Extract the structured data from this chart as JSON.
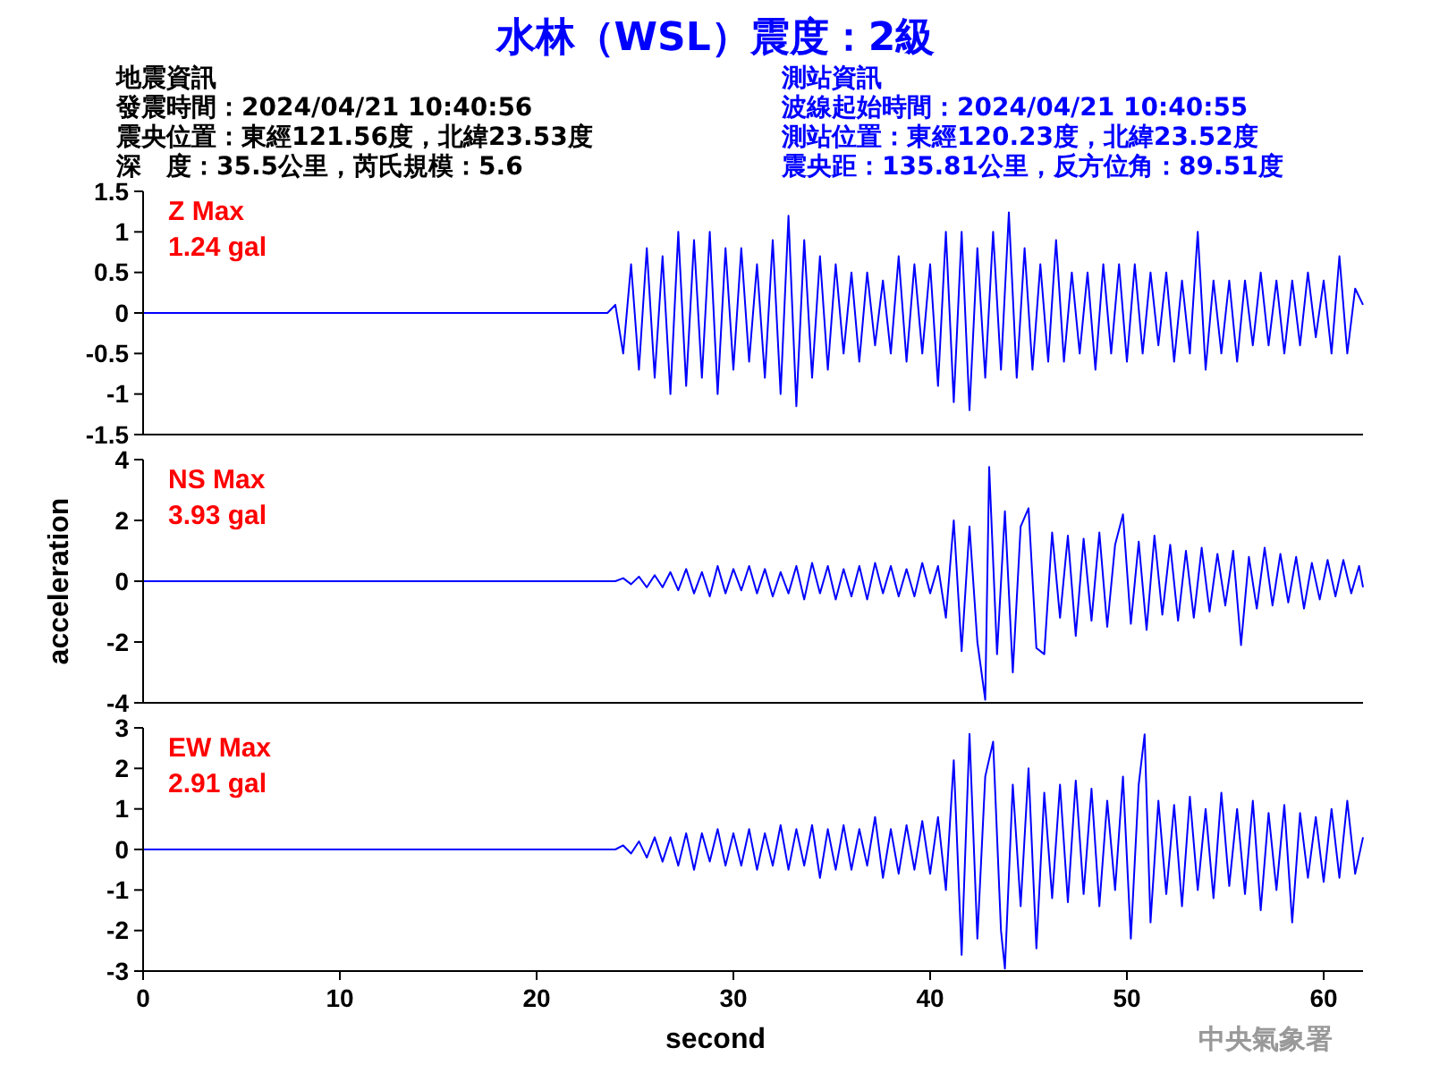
{
  "chart_data": [
    {
      "type": "line",
      "title": "水林（WSL）震度：2級",
      "annotations": [
        "地震資訊",
        "發震時間：2024/04/21 10:40:56",
        "震央位置：東經121.56度，北緯23.53度",
        "深　度：35.5公里，芮氏規模：5.6",
        "測站資訊",
        "波線起始時間：2024/04/21 10:40:55",
        "測站位置：東經120.23度，北緯23.52度",
        "震央距：135.81公里，反方位角：89.51度",
        "Z Max",
        "1.24 gal"
      ],
      "xlim": [
        0,
        62
      ],
      "ylim": [
        -1.5,
        1.5
      ],
      "yticks": [
        -1.5,
        -1,
        -0.5,
        0,
        0.5,
        1,
        1.5
      ],
      "tick_labels": "y",
      "series": [
        {
          "color": "#0000ff",
          "x": [
            0,
            23.6,
            24.0,
            24.4,
            24.8,
            25.2,
            25.6,
            26.0,
            26.4,
            26.8,
            27.2,
            27.6,
            28.0,
            28.4,
            28.8,
            29.2,
            29.6,
            30.0,
            30.4,
            30.8,
            31.2,
            31.6,
            32.0,
            32.4,
            32.8,
            33.2,
            33.6,
            34.0,
            34.4,
            34.8,
            35.2,
            35.6,
            36.0,
            36.4,
            36.8,
            37.2,
            37.6,
            38.0,
            38.4,
            38.8,
            39.2,
            39.6,
            40.0,
            40.4,
            40.8,
            41.2,
            41.6,
            42.0,
            42.4,
            42.8,
            43.2,
            43.6,
            44.0,
            44.4,
            44.8,
            45.2,
            45.6,
            46.0,
            46.4,
            46.8,
            47.2,
            47.6,
            48.0,
            48.4,
            48.8,
            49.2,
            49.6,
            50.0,
            50.4,
            50.8,
            51.2,
            51.6,
            52.0,
            52.4,
            52.8,
            53.2,
            53.6,
            54.0,
            54.4,
            54.8,
            55.2,
            55.6,
            56.0,
            56.4,
            56.8,
            57.2,
            57.6,
            58.0,
            58.4,
            58.8,
            59.2,
            59.6,
            60.0,
            60.4,
            60.8,
            61.2,
            61.6,
            62.0
          ],
          "values": [
            0,
            0,
            0.1,
            -0.5,
            0.6,
            -0.7,
            0.8,
            -0.8,
            0.7,
            -1.0,
            1.0,
            -0.9,
            0.9,
            -0.8,
            1.0,
            -1.0,
            0.8,
            -0.7,
            0.8,
            -0.6,
            0.6,
            -0.8,
            0.9,
            -1.0,
            1.2,
            -1.15,
            0.9,
            -0.8,
            0.7,
            -0.7,
            0.6,
            -0.5,
            0.5,
            -0.6,
            0.5,
            -0.4,
            0.4,
            -0.5,
            0.7,
            -0.6,
            0.6,
            -0.5,
            0.6,
            -0.9,
            1.0,
            -1.1,
            1.0,
            -1.2,
            0.8,
            -0.8,
            1.0,
            -0.7,
            1.24,
            -0.8,
            0.8,
            -0.7,
            0.6,
            -0.6,
            0.9,
            -0.6,
            0.5,
            -0.5,
            0.5,
            -0.7,
            0.6,
            -0.5,
            0.6,
            -0.6,
            0.6,
            -0.5,
            0.5,
            -0.4,
            0.5,
            -0.6,
            0.4,
            -0.5,
            1.0,
            -0.7,
            0.4,
            -0.5,
            0.4,
            -0.6,
            0.4,
            -0.4,
            0.5,
            -0.4,
            0.4,
            -0.5,
            0.4,
            -0.4,
            0.5,
            -0.3,
            0.4,
            -0.5,
            0.7,
            -0.5,
            0.3,
            0.1
          ]
        }
      ]
    },
    {
      "type": "line",
      "ylabel": "acceleration",
      "annotations": [
        "NS Max",
        "3.93 gal"
      ],
      "xlim": [
        0,
        62
      ],
      "ylim": [
        -4,
        4
      ],
      "yticks": [
        -4,
        -2,
        0,
        2,
        4
      ],
      "tick_labels": "y",
      "series": [
        {
          "color": "#0000ff",
          "x": [
            0,
            23.6,
            24.0,
            24.4,
            24.8,
            25.2,
            25.6,
            26.0,
            26.4,
            26.8,
            27.2,
            27.6,
            28.0,
            28.4,
            28.8,
            29.2,
            29.6,
            30.0,
            30.4,
            30.8,
            31.2,
            31.6,
            32.0,
            32.4,
            32.8,
            33.2,
            33.6,
            34.0,
            34.4,
            34.8,
            35.2,
            35.6,
            36.0,
            36.4,
            36.8,
            37.2,
            37.6,
            38.0,
            38.4,
            38.8,
            39.2,
            39.6,
            40.0,
            40.4,
            40.8,
            41.2,
            41.6,
            42.0,
            42.4,
            42.8,
            43.0,
            43.4,
            43.8,
            44.2,
            44.6,
            45.0,
            45.4,
            45.8,
            46.2,
            46.6,
            47.0,
            47.4,
            47.8,
            48.2,
            48.6,
            49.0,
            49.4,
            49.8,
            50.2,
            50.6,
            51.0,
            51.4,
            51.8,
            52.2,
            52.6,
            53.0,
            53.4,
            53.8,
            54.2,
            54.6,
            55.0,
            55.4,
            55.8,
            56.2,
            56.6,
            57.0,
            57.4,
            57.8,
            58.2,
            58.6,
            59.0,
            59.4,
            59.8,
            60.2,
            60.6,
            61.0,
            61.4,
            61.8,
            62.0
          ],
          "values": [
            0,
            0,
            0,
            0.1,
            -0.1,
            0.15,
            -0.2,
            0.2,
            -0.2,
            0.3,
            -0.3,
            0.4,
            -0.4,
            0.3,
            -0.5,
            0.5,
            -0.4,
            0.4,
            -0.3,
            0.5,
            -0.4,
            0.4,
            -0.5,
            0.3,
            -0.4,
            0.5,
            -0.6,
            0.6,
            -0.4,
            0.5,
            -0.6,
            0.4,
            -0.5,
            0.5,
            -0.6,
            0.6,
            -0.4,
            0.5,
            -0.5,
            0.4,
            -0.5,
            0.6,
            -0.4,
            0.5,
            -1.2,
            2.0,
            -2.3,
            1.8,
            -2.0,
            -3.9,
            3.76,
            -2.4,
            2.3,
            -3.0,
            1.8,
            2.4,
            -2.2,
            -2.4,
            1.6,
            -1.2,
            1.5,
            -1.8,
            1.4,
            -1.3,
            1.6,
            -1.5,
            1.2,
            2.2,
            -1.4,
            1.3,
            -1.6,
            1.5,
            -1.1,
            1.2,
            -1.3,
            1.0,
            -1.2,
            1.1,
            -1.0,
            0.9,
            -0.8,
            1.0,
            -2.1,
            0.8,
            -0.9,
            1.1,
            -0.8,
            0.9,
            -0.7,
            0.8,
            -0.9,
            0.6,
            -0.6,
            0.7,
            -0.5,
            0.7,
            -0.4,
            0.5,
            -0.2
          ]
        }
      ]
    },
    {
      "type": "line",
      "xlabel": "second",
      "annotations": [
        "EW Max",
        "2.91 gal",
        "中央氣象署"
      ],
      "xlim": [
        0,
        62
      ],
      "xticks": [
        0,
        10,
        20,
        30,
        40,
        50,
        60
      ],
      "ylim": [
        -3,
        3
      ],
      "yticks": [
        -3,
        -2,
        -1,
        0,
        1,
        2,
        3
      ],
      "series": [
        {
          "color": "#0000ff",
          "x": [
            0,
            23.6,
            24.0,
            24.4,
            24.8,
            25.2,
            25.6,
            26.0,
            26.4,
            26.8,
            27.2,
            27.6,
            28.0,
            28.4,
            28.8,
            29.2,
            29.6,
            30.0,
            30.4,
            30.8,
            31.2,
            31.6,
            32.0,
            32.4,
            32.8,
            33.2,
            33.6,
            34.0,
            34.4,
            34.8,
            35.2,
            35.6,
            36.0,
            36.4,
            36.8,
            37.2,
            37.6,
            38.0,
            38.4,
            38.8,
            39.2,
            39.6,
            40.0,
            40.4,
            40.8,
            41.2,
            41.6,
            42.0,
            42.4,
            42.8,
            43.2,
            43.6,
            43.8,
            44.2,
            44.6,
            45.0,
            45.4,
            45.8,
            46.2,
            46.6,
            47.0,
            47.4,
            47.8,
            48.2,
            48.6,
            49.0,
            49.4,
            49.8,
            50.2,
            50.6,
            50.9,
            51.2,
            51.6,
            52.0,
            52.4,
            52.8,
            53.2,
            53.6,
            54.0,
            54.4,
            54.8,
            55.2,
            55.6,
            56.0,
            56.4,
            56.8,
            57.2,
            57.6,
            58.0,
            58.4,
            58.8,
            59.2,
            59.6,
            60.0,
            60.4,
            60.8,
            61.2,
            61.6,
            62.0
          ],
          "values": [
            0,
            0,
            0,
            0.1,
            -0.1,
            0.2,
            -0.2,
            0.3,
            -0.3,
            0.3,
            -0.4,
            0.4,
            -0.5,
            0.4,
            -0.3,
            0.5,
            -0.4,
            0.4,
            -0.4,
            0.5,
            -0.5,
            0.4,
            -0.4,
            0.6,
            -0.5,
            0.5,
            -0.4,
            0.6,
            -0.7,
            0.5,
            -0.5,
            0.6,
            -0.5,
            0.5,
            -0.4,
            0.8,
            -0.7,
            0.5,
            -0.6,
            0.6,
            -0.5,
            0.7,
            -0.6,
            0.8,
            -1.0,
            2.2,
            -2.6,
            2.85,
            -2.2,
            1.8,
            2.66,
            -2.0,
            -2.94,
            1.6,
            -1.4,
            2.0,
            -2.44,
            1.4,
            -1.2,
            1.6,
            -1.3,
            1.7,
            -1.1,
            1.5,
            -1.4,
            1.2,
            -1.0,
            1.8,
            -2.2,
            1.6,
            2.84,
            -1.8,
            1.2,
            -1.1,
            1.1,
            -1.4,
            1.3,
            -1.0,
            1.0,
            -1.2,
            1.4,
            -0.9,
            1.0,
            -1.1,
            1.2,
            -1.5,
            0.9,
            -1.0,
            1.1,
            -1.8,
            0.9,
            -0.7,
            0.8,
            -0.8,
            1.0,
            -0.7,
            1.2,
            -0.6,
            0.3
          ]
        }
      ]
    }
  ]
}
